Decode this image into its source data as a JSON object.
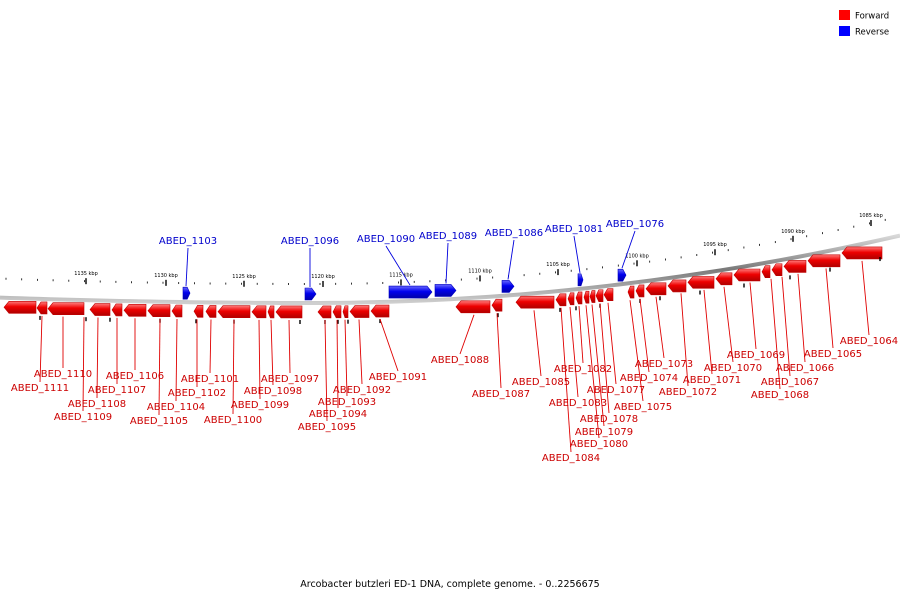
{
  "caption": "Arcobacter butzleri ED-1 DNA, complete genome. - 0..2256675",
  "legend": [
    {
      "label": "Forward",
      "color": "#ff0000"
    },
    {
      "label": "Reverse",
      "color": "#0000ff"
    }
  ],
  "colors": {
    "forward": "#ff0000",
    "reverse": "#0000ff",
    "backbone": "#808080",
    "forward_label": "#cc0000",
    "reverse_label": "#0000cc"
  },
  "scale": {
    "labels": [
      "1135 kbp",
      "1130 kbp",
      "1125 kbp",
      "1120 kbp",
      "1115 kbp",
      "1110 kbp",
      "1105 kbp",
      "1100 kbp",
      "1095 kbp",
      "1090 kbp",
      "1085 kbp"
    ]
  },
  "forward_genes": [
    {
      "name": "ABED_1064"
    },
    {
      "name": "ABED_1065"
    },
    {
      "name": "ABED_1066"
    },
    {
      "name": "ABED_1067"
    },
    {
      "name": "ABED_1068"
    },
    {
      "name": "ABED_1069"
    },
    {
      "name": "ABED_1070"
    },
    {
      "name": "ABED_1071"
    },
    {
      "name": "ABED_1072"
    },
    {
      "name": "ABED_1073"
    },
    {
      "name": "ABED_1074"
    },
    {
      "name": "ABED_1075"
    },
    {
      "name": "ABED_1077"
    },
    {
      "name": "ABED_1078"
    },
    {
      "name": "ABED_1079"
    },
    {
      "name": "ABED_1080"
    },
    {
      "name": "ABED_1082"
    },
    {
      "name": "ABED_1083"
    },
    {
      "name": "ABED_1084"
    },
    {
      "name": "ABED_1085"
    },
    {
      "name": "ABED_1087"
    },
    {
      "name": "ABED_1088"
    },
    {
      "name": "ABED_1091"
    },
    {
      "name": "ABED_1092"
    },
    {
      "name": "ABED_1093"
    },
    {
      "name": "ABED_1094"
    },
    {
      "name": "ABED_1095"
    },
    {
      "name": "ABED_1097"
    },
    {
      "name": "ABED_1098"
    },
    {
      "name": "ABED_1099"
    },
    {
      "name": "ABED_1100"
    },
    {
      "name": "ABED_1101"
    },
    {
      "name": "ABED_1102"
    },
    {
      "name": "ABED_1104"
    },
    {
      "name": "ABED_1105"
    },
    {
      "name": "ABED_1106"
    },
    {
      "name": "ABED_1107"
    },
    {
      "name": "ABED_1108"
    },
    {
      "name": "ABED_1109"
    },
    {
      "name": "ABED_1110"
    },
    {
      "name": "ABED_1111"
    }
  ],
  "reverse_genes": [
    {
      "name": "ABED_1103"
    },
    {
      "name": "ABED_1096"
    },
    {
      "name": "ABED_1090"
    },
    {
      "name": "ABED_1089"
    },
    {
      "name": "ABED_1086"
    },
    {
      "name": "ABED_1081"
    },
    {
      "name": "ABED_1076"
    }
  ]
}
